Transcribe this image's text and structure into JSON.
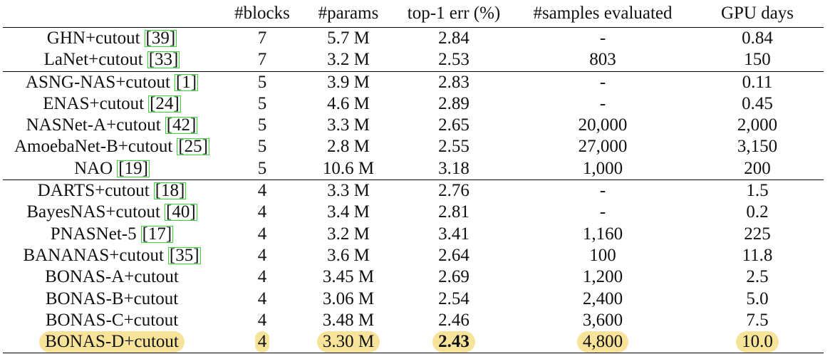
{
  "table": {
    "headers": {
      "method": "",
      "blocks": "#blocks",
      "params": "#params",
      "err": "top-1 err (%)",
      "samples": "#samples evaluated",
      "gpu": "GPU days"
    },
    "rows": [
      {
        "method": "GHN+cutout",
        "cite": "[39]",
        "blocks": "7",
        "params": "5.7 M",
        "err": "2.84",
        "samples": "-",
        "gpu": "0.84"
      },
      {
        "method": "LaNet+cutout",
        "cite": "[33]",
        "blocks": "7",
        "params": "3.2 M",
        "err": "2.53",
        "samples": "803",
        "gpu": "150"
      },
      {
        "method": "ASNG-NAS+cutout",
        "cite": "[1]",
        "blocks": "5",
        "params": "3.9 M",
        "err": "2.83",
        "samples": "-",
        "gpu": "0.11"
      },
      {
        "method": "ENAS+cutout",
        "cite": "[24]",
        "blocks": "5",
        "params": "4.6 M",
        "err": "2.89",
        "samples": "-",
        "gpu": "0.45"
      },
      {
        "method": "NASNet-A+cutout",
        "cite": "[42]",
        "blocks": "5",
        "params": "3.3 M",
        "err": "2.65",
        "samples": "20,000",
        "gpu": "2,000"
      },
      {
        "method": "AmoebaNet-B+cutout",
        "cite": "[25]",
        "blocks": "5",
        "params": "2.8 M",
        "err": "2.55",
        "samples": "27,000",
        "gpu": "3,150"
      },
      {
        "method": "NAO",
        "cite": "[19]",
        "blocks": "5",
        "params": "10.6 M",
        "err": "3.18",
        "samples": "1,000",
        "gpu": "200"
      },
      {
        "method": "DARTS+cutout",
        "cite": "[18]",
        "blocks": "4",
        "params": "3.3 M",
        "err": "2.76",
        "samples": "-",
        "gpu": "1.5"
      },
      {
        "method": "BayesNAS+cutout",
        "cite": "[40]",
        "blocks": "4",
        "params": "3.4 M",
        "err": "2.81",
        "samples": "-",
        "gpu": "0.2"
      },
      {
        "method": "PNASNet-5",
        "cite": "[17]",
        "blocks": "4",
        "params": "3.2 M",
        "err": "3.41",
        "samples": "1,160",
        "gpu": "225"
      },
      {
        "method": "BANANAS+cutout",
        "cite": "[35]",
        "blocks": "4",
        "params": "3.6 M",
        "err": "2.64",
        "samples": "100",
        "gpu": "11.8"
      },
      {
        "method": "BONAS-A+cutout",
        "cite": "",
        "blocks": "4",
        "params": "3.45 M",
        "err": "2.69",
        "samples": "1,200",
        "gpu": "2.5"
      },
      {
        "method": "BONAS-B+cutout",
        "cite": "",
        "blocks": "4",
        "params": "3.06 M",
        "err": "2.54",
        "samples": "2,400",
        "gpu": "5.0"
      },
      {
        "method": "BONAS-C+cutout",
        "cite": "",
        "blocks": "4",
        "params": "3.48 M",
        "err": "2.46",
        "samples": "3,600",
        "gpu": "7.5"
      },
      {
        "method": "BONAS-D+cutout",
        "cite": "",
        "blocks": "4",
        "params": "3.30 M",
        "err": "2.43",
        "samples": "4,800",
        "gpu": "10.0"
      }
    ]
  },
  "colors": {
    "highlight": "#f7e39a",
    "citation_border": "#34d634",
    "rule": "#000000"
  }
}
